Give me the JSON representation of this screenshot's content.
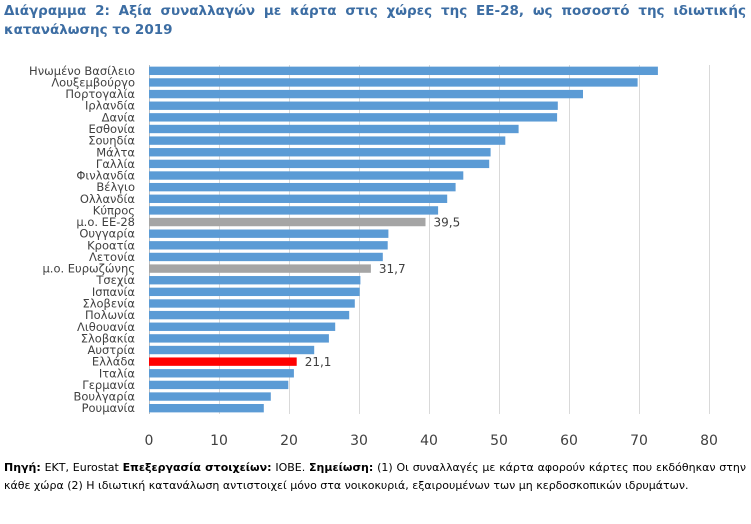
{
  "title": "Διάγραμμα 2: Αξία συναλλαγών με κάρτα στις χώρες της ΕΕ-28, ως ποσοστό της ιδιωτικής κατανάλωσης το 2019",
  "footnote": {
    "source_label": "Πηγή:",
    "source_text": " ΕΚΤ, Eurostat  ",
    "processing_label": "Επεξεργασία στοιχείων:",
    "processing_text": " ΙΟΒΕ. ",
    "note_label": "Σημείωση:",
    "note_text": " (1) Οι συναλλαγές με κάρτα αφορούν κάρτες που εκδόθηκαν στην κάθε χώρα (2) Η ιδιωτική κατανάλωση αντιστοιχεί μόνο στα νοικοκυριά, εξαιρουμένων των μη κερδοσκοπικών ιδρυμάτων."
  },
  "colors": {
    "default": "#5b9bd5",
    "average": "#a5a5a5",
    "highlight": "#ff0000"
  },
  "chart_data": {
    "type": "bar",
    "orientation": "horizontal",
    "categories": [
      "Ηνωμένο Βασίλειο",
      "Λουξεμβούργο",
      "Πορτογαλία",
      "Ιρλανδία",
      "Δανία",
      "Εσθονία",
      "Σουηδία",
      "Μάλτα",
      "Γαλλία",
      "Φινλανδία",
      "Βέλγιο",
      "Ολλανδία",
      "Κύπρος",
      "μ.ο. ΕΕ-28",
      "Ουγγαρία",
      "Κροατία",
      "Λετονία",
      "μ.ο. Ευρωζώνης",
      "Τσεχία",
      "Ισπανία",
      "Σλοβενία",
      "Πολωνία",
      "Λιθουανία",
      "Σλοβακία",
      "Αυστρία",
      "Ελλάδα",
      "Ιταλία",
      "Γερμανία",
      "Βουλγαρία",
      "Ρουμανία"
    ],
    "values": [
      72.7,
      69.8,
      62.0,
      58.4,
      58.3,
      52.8,
      50.9,
      48.8,
      48.6,
      44.9,
      43.8,
      42.6,
      41.3,
      39.5,
      34.2,
      34.1,
      33.4,
      31.7,
      30.2,
      30.1,
      29.4,
      28.6,
      26.6,
      25.7,
      23.6,
      21.1,
      20.7,
      19.9,
      17.4,
      16.4
    ],
    "bar_kind": [
      "default",
      "default",
      "default",
      "default",
      "default",
      "default",
      "default",
      "default",
      "default",
      "default",
      "default",
      "default",
      "default",
      "average",
      "default",
      "default",
      "default",
      "average",
      "default",
      "default",
      "default",
      "default",
      "default",
      "default",
      "default",
      "highlight",
      "default",
      "default",
      "default",
      "default"
    ],
    "data_labels": [
      {
        "index": 13,
        "text": "39,5"
      },
      {
        "index": 17,
        "text": "31,7"
      },
      {
        "index": 25,
        "text": "21,1"
      }
    ],
    "xlim": [
      0,
      80
    ],
    "x_ticks": [
      0,
      10,
      20,
      30,
      40,
      50,
      60,
      70,
      80
    ],
    "grid": true,
    "xlabel": "",
    "ylabel": ""
  }
}
